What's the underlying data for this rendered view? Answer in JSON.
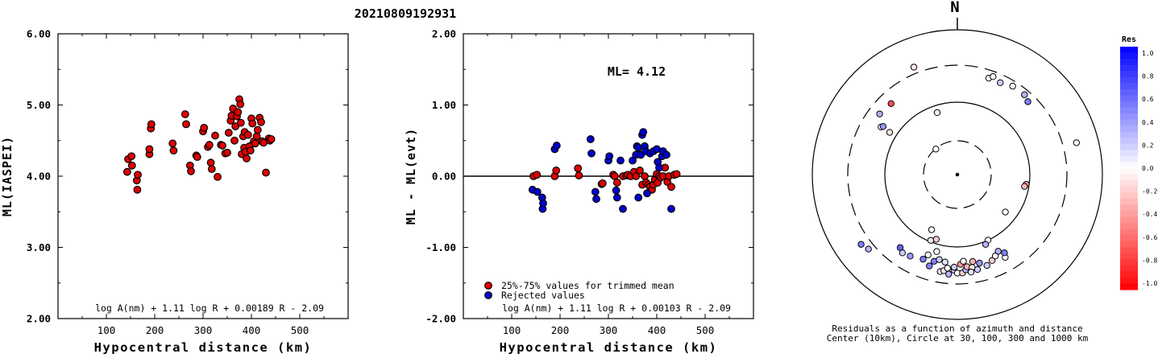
{
  "header": {
    "event_id": "20210809192931"
  },
  "chart_data": [
    {
      "type": "scatter",
      "xlabel": "Hypocentral distance (km)",
      "ylabel": "ML(IASPEI)",
      "xlim": [
        0,
        600
      ],
      "ylim": [
        2.0,
        6.0
      ],
      "xticks": [
        "100",
        "200",
        "300",
        "400",
        "500"
      ],
      "yticks": [
        "2.00",
        "3.00",
        "4.00",
        "5.00",
        "6.00"
      ],
      "formula": "log A(nm) + 1.11 log R + 0.00189 R - 2.09",
      "series": [
        {
          "color": "#e00000",
          "points": [
            [
              143,
              4.06
            ],
            [
              145,
              4.24
            ],
            [
              152,
              4.28
            ],
            [
              153,
              4.15
            ],
            [
              163,
              3.94
            ],
            [
              164,
              3.81
            ],
            [
              165,
              4.02
            ],
            [
              189,
              4.31
            ],
            [
              189,
              4.38
            ],
            [
              192,
              4.67
            ],
            [
              193,
              4.73
            ],
            [
              237,
              4.46
            ],
            [
              239,
              4.36
            ],
            [
              263,
              4.87
            ],
            [
              265,
              4.73
            ],
            [
              273,
              4.15
            ],
            [
              275,
              4.07
            ],
            [
              286,
              4.29
            ],
            [
              288,
              4.27
            ],
            [
              300,
              4.63
            ],
            [
              302,
              4.68
            ],
            [
              310,
              4.41
            ],
            [
              313,
              4.44
            ],
            [
              316,
              4.19
            ],
            [
              318,
              4.1
            ],
            [
              325,
              4.57
            ],
            [
              330,
              3.99
            ],
            [
              337,
              4.44
            ],
            [
              340,
              4.43
            ],
            [
              346,
              4.32
            ],
            [
              350,
              4.33
            ],
            [
              353,
              4.61
            ],
            [
              357,
              4.78
            ],
            [
              359,
              4.85
            ],
            [
              362,
              4.95
            ],
            [
              365,
              4.5
            ],
            [
              367,
              4.7
            ],
            [
              370,
              4.84
            ],
            [
              372,
              4.9
            ],
            [
              375,
              5.08
            ],
            [
              377,
              5.01
            ],
            [
              378,
              4.75
            ],
            [
              380,
              4.31
            ],
            [
              383,
              4.56
            ],
            [
              385,
              4.4
            ],
            [
              386,
              4.62
            ],
            [
              388,
              4.34
            ],
            [
              390,
              4.25
            ],
            [
              393,
              4.58
            ],
            [
              396,
              4.42
            ],
            [
              398,
              4.36
            ],
            [
              400,
              4.81
            ],
            [
              402,
              4.74
            ],
            [
              405,
              4.49
            ],
            [
              408,
              4.46
            ],
            [
              411,
              4.56
            ],
            [
              413,
              4.65
            ],
            [
              417,
              4.82
            ],
            [
              420,
              4.76
            ],
            [
              422,
              4.49
            ],
            [
              425,
              4.47
            ],
            [
              430,
              4.05
            ],
            [
              436,
              4.53
            ],
            [
              438,
              4.5
            ],
            [
              441,
              4.52
            ]
          ]
        }
      ]
    },
    {
      "type": "scatter",
      "xlabel": "Hypocentral distance (km)",
      "ylabel": "ML - ML(evt)",
      "xlim": [
        0,
        600
      ],
      "ylim": [
        -2.0,
        2.0
      ],
      "xticks": [
        "100",
        "200",
        "300",
        "400",
        "500"
      ],
      "yticks": [
        "-2.00",
        "-1.00",
        "0.00",
        "1.00",
        "2.00"
      ],
      "annotation": "ML= 4.12",
      "formula": "log A(nm) + 1.11 log R + 0.00103 R - 2.09",
      "series": [
        {
          "name": "25%-75% values for trimmed mean",
          "color": "#e00000",
          "points": [
            [
              145,
              0.0
            ],
            [
              152,
              0.02
            ],
            [
              189,
              0.0
            ],
            [
              192,
              0.08
            ],
            [
              237,
              0.11
            ],
            [
              239,
              0.01
            ],
            [
              286,
              -0.11
            ],
            [
              288,
              -0.1
            ],
            [
              310,
              0.02
            ],
            [
              313,
              0.0
            ],
            [
              318,
              -0.09
            ],
            [
              330,
              0.0
            ],
            [
              337,
              0.01
            ],
            [
              340,
              0.02
            ],
            [
              346,
              0.0
            ],
            [
              353,
              0.06
            ],
            [
              357,
              0.0
            ],
            [
              365,
              0.08
            ],
            [
              370,
              -0.12
            ],
            [
              375,
              0.0
            ],
            [
              378,
              -0.09
            ],
            [
              383,
              -0.12
            ],
            [
              386,
              -0.15
            ],
            [
              390,
              -0.19
            ],
            [
              393,
              -0.12
            ],
            [
              396,
              -0.05
            ],
            [
              400,
              0.03
            ],
            [
              402,
              -0.09
            ],
            [
              405,
              0.0
            ],
            [
              408,
              -0.02
            ],
            [
              413,
              0.0
            ],
            [
              417,
              0.12
            ],
            [
              422,
              -0.08
            ],
            [
              425,
              0.0
            ],
            [
              430,
              -0.15
            ],
            [
              436,
              0.02
            ],
            [
              441,
              0.03
            ]
          ]
        },
        {
          "name": "Rejected values",
          "color": "#0000d0",
          "points": [
            [
              143,
              -0.19
            ],
            [
              153,
              -0.22
            ],
            [
              163,
              -0.3
            ],
            [
              164,
              -0.46
            ],
            [
              165,
              -0.38
            ],
            [
              189,
              0.38
            ],
            [
              193,
              0.43
            ],
            [
              263,
              0.52
            ],
            [
              265,
              0.32
            ],
            [
              273,
              -0.22
            ],
            [
              275,
              -0.32
            ],
            [
              300,
              0.22
            ],
            [
              302,
              0.28
            ],
            [
              316,
              -0.2
            ],
            [
              318,
              -0.3
            ],
            [
              325,
              0.22
            ],
            [
              330,
              -0.46
            ],
            [
              350,
              0.22
            ],
            [
              357,
              0.3
            ],
            [
              359,
              0.42
            ],
            [
              362,
              0.4
            ],
            [
              367,
              0.3
            ],
            [
              370,
              0.58
            ],
            [
              372,
              0.62
            ],
            [
              375,
              0.42
            ],
            [
              377,
              0.35
            ],
            [
              386,
              0.32
            ],
            [
              393,
              0.35
            ],
            [
              400,
              0.38
            ],
            [
              402,
              0.2
            ],
            [
              405,
              0.12
            ],
            [
              411,
              0.28
            ],
            [
              413,
              0.35
            ],
            [
              420,
              0.3
            ],
            [
              430,
              -0.46
            ],
            [
              362,
              -0.3
            ],
            [
              380,
              -0.24
            ]
          ]
        }
      ]
    },
    {
      "type": "scatter",
      "subtype": "polar residual map",
      "north_label": "N",
      "caption_line1": "Residuals as a function of azimuth and distance",
      "caption_line2": "Center (10km), Circle at 30, 100, 300 and 1000 km",
      "colorbar": {
        "title": "Res",
        "ticks": [
          "1.0",
          "0.8",
          "0.6",
          "0.4",
          "0.2",
          "0.0",
          "-0.2",
          "-0.4",
          "-0.6",
          "-0.8",
          "-1.0"
        ],
        "max_color": "#0000ff",
        "zero_color": "#ffffff",
        "min_color": "#ff0000"
      },
      "points": [
        [
          -40,
          0.23,
          0.0
        ],
        [
          -22,
          0.8,
          -0.1
        ],
        [
          -18,
          0.45,
          0.0
        ],
        [
          -43,
          0.67,
          -0.7
        ],
        [
          -58,
          0.62,
          0.0
        ],
        [
          -52,
          0.68,
          0.3
        ],
        [
          -57,
          0.61,
          0.4
        ],
        [
          -58,
          0.55,
          -0.1
        ],
        [
          18,
          0.7,
          0.0
        ],
        [
          20,
          0.72,
          0.0
        ],
        [
          25,
          0.7,
          0.2
        ],
        [
          40,
          0.72,
          0.3
        ],
        [
          44,
          0.7,
          0.5
        ],
        [
          32,
          0.72,
          0.0
        ],
        [
          75,
          0.85,
          0.0
        ],
        [
          98,
          0.48,
          -0.4
        ],
        [
          100,
          0.47,
          -0.3
        ],
        [
          128,
          0.42,
          0.0
        ],
        [
          155,
          0.5,
          0.0
        ],
        [
          158,
          0.52,
          0.3
        ],
        [
          -165,
          0.62,
          0.5
        ],
        [
          -170,
          0.68,
          0.1
        ],
        [
          -172,
          0.67,
          -0.1
        ],
        [
          -174,
          0.65,
          0.0
        ],
        [
          -178,
          0.66,
          0.2
        ],
        [
          -180,
          0.68,
          0.0
        ],
        [
          177,
          0.68,
          -0.2
        ],
        [
          175,
          0.66,
          0.3
        ],
        [
          174,
          0.64,
          -0.3
        ],
        [
          171,
          0.65,
          0.0
        ],
        [
          168,
          0.67,
          0.2
        ],
        [
          166,
          0.63,
          0.4
        ],
        [
          162,
          0.66,
          0.2
        ],
        [
          158,
          0.64,
          -0.2
        ],
        [
          155,
          0.62,
          0.0
        ],
        [
          152,
          0.6,
          0.3
        ],
        [
          -160,
          0.59,
          0.0
        ],
        [
          -158,
          0.63,
          0.5
        ],
        [
          -175,
          0.69,
          0.3
        ],
        [
          -178,
          0.64,
          0.2
        ],
        [
          178,
          0.62,
          -0.4
        ],
        [
          172,
          0.68,
          0.1
        ],
        [
          -168,
          0.6,
          0.2
        ],
        [
          170,
          0.61,
          -0.3
        ],
        [
          -163,
          0.66,
          0.5
        ],
        [
          -165,
          0.55,
          0.0
        ],
        [
          -130,
          0.8,
          0.3
        ],
        [
          -126,
          0.82,
          0.5
        ],
        [
          -162,
          0.47,
          -0.2
        ],
        [
          -158,
          0.49,
          0.1
        ],
        [
          150,
          0.66,
          0.0
        ],
        [
          149,
          0.63,
          0.5
        ],
        [
          -155,
          0.42,
          0.0
        ],
        [
          -172,
          0.61,
          0.1
        ],
        [
          176,
          0.6,
          0.0
        ],
        [
          -150,
          0.65,
          0.4
        ],
        [
          -145,
          0.66,
          0.2
        ],
        [
          -142,
          0.64,
          0.6
        ]
      ]
    }
  ]
}
